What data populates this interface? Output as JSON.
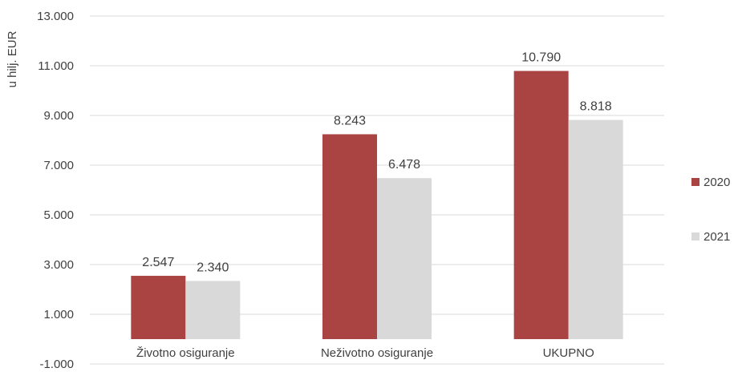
{
  "chart_data": {
    "type": "bar",
    "title": "",
    "xlabel": "",
    "ylabel": "u hilj. EUR",
    "categories": [
      "Životno osiguranje",
      "Neživotno osiguranje",
      "UKUPNO"
    ],
    "series": [
      {
        "name": "2020",
        "values": [
          2547,
          8243,
          10790
        ],
        "labels": [
          "2.547",
          "8.243",
          "10.790"
        ],
        "color": "#a94442"
      },
      {
        "name": "2021",
        "values": [
          2340,
          6478,
          8818
        ],
        "labels": [
          "2.340",
          "6.478",
          "8.818"
        ],
        "color": "#d9d9d9"
      }
    ],
    "yticks": [
      -1000,
      1000,
      3000,
      5000,
      7000,
      9000,
      11000,
      13000
    ],
    "ytick_labels": [
      "-1.000",
      "1.000",
      "3.000",
      "5.000",
      "7.000",
      "9.000",
      "11.000",
      "13.000"
    ],
    "ylim": [
      -1000,
      13000
    ],
    "grid": true,
    "gridline_color": "#d9d9d9",
    "legend_position": "right"
  }
}
